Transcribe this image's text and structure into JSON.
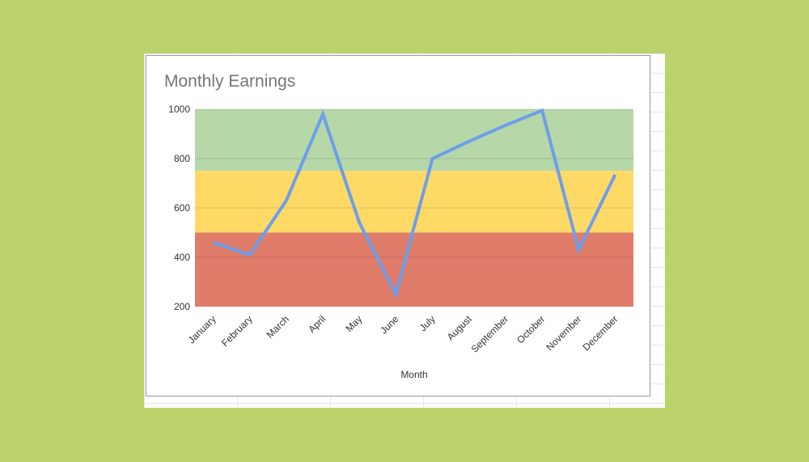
{
  "chart_data": {
    "type": "line",
    "title": "Monthly Earnings",
    "xlabel": "Month",
    "ylabel": "",
    "ylim": [
      200,
      1000
    ],
    "yticks": [
      200,
      400,
      600,
      800,
      1000
    ],
    "categories": [
      "January",
      "February",
      "March",
      "April",
      "May",
      "June",
      "July",
      "August",
      "September",
      "October",
      "November",
      "December"
    ],
    "series": [
      {
        "values": [
          460,
          410,
          630,
          980,
          540,
          250,
          800,
          870,
          935,
          995,
          430,
          735
        ],
        "color": "#6d9eeb"
      }
    ],
    "bands": [
      {
        "from": 750,
        "to": 1000,
        "color": "#b6d7a8"
      },
      {
        "from": 500,
        "to": 750,
        "color": "#ffd966"
      },
      {
        "from": 200,
        "to": 500,
        "color": "#e07c6a"
      }
    ],
    "grid": true,
    "legend": "none"
  }
}
